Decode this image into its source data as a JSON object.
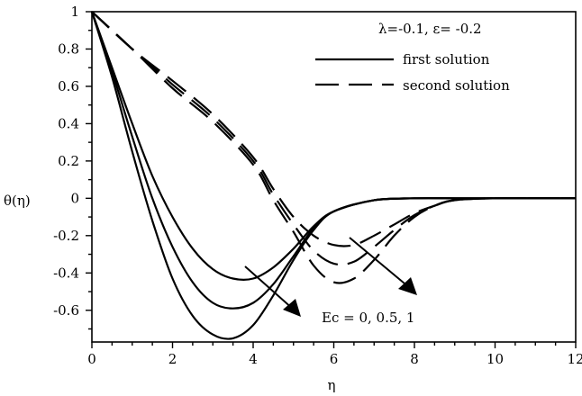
{
  "chart_data": {
    "type": "line",
    "title": "",
    "xlabel": "η",
    "ylabel": "θ(η)",
    "xlim": [
      0,
      12
    ],
    "ylim": [
      -0.77,
      1.0
    ],
    "xticks": [
      "0",
      "2",
      "4",
      "6",
      "8",
      "10",
      "12"
    ],
    "yticks": [
      "1",
      "0.8",
      "0.6",
      "0.4",
      "0.2",
      "0",
      "-0.2",
      "-0.4",
      "-0.6"
    ],
    "parameter_note": "λ=-0.1, ε= -0.2",
    "legend": [
      {
        "label": "first solution",
        "style": "solid"
      },
      {
        "label": "second solution",
        "style": "dashed"
      }
    ],
    "legend_placement": "top-right",
    "annotation": "Ec = 0, 0.5, 1",
    "grid": false,
    "series": [
      {
        "solution": "first",
        "Ec": 0,
        "style": "solid",
        "x": [
          0,
          0.5,
          1,
          1.5,
          2,
          2.5,
          3,
          3.5,
          4,
          4.5,
          5,
          5.5,
          6,
          7,
          8,
          9,
          10,
          12
        ],
        "y": [
          1,
          0.7,
          0.4,
          0.12,
          -0.1,
          -0.27,
          -0.38,
          -0.43,
          -0.43,
          -0.37,
          -0.27,
          -0.15,
          -0.07,
          -0.01,
          0,
          0,
          0,
          0
        ]
      },
      {
        "solution": "first",
        "Ec": 0.5,
        "style": "solid",
        "x": [
          0,
          0.5,
          1,
          1.5,
          2,
          2.5,
          3,
          3.5,
          4,
          4.5,
          5,
          5.5,
          6,
          7,
          8,
          9,
          10,
          12
        ],
        "y": [
          1,
          0.68,
          0.33,
          0.0,
          -0.26,
          -0.45,
          -0.56,
          -0.59,
          -0.56,
          -0.46,
          -0.31,
          -0.16,
          -0.07,
          -0.01,
          0,
          0,
          0,
          0
        ]
      },
      {
        "solution": "first",
        "Ec": 1,
        "style": "solid",
        "x": [
          0,
          0.5,
          1,
          1.5,
          2,
          2.5,
          3,
          3.5,
          4,
          4.5,
          5,
          5.5,
          6,
          7,
          8,
          9,
          10,
          12
        ],
        "y": [
          1,
          0.65,
          0.25,
          -0.12,
          -0.43,
          -0.63,
          -0.73,
          -0.75,
          -0.68,
          -0.52,
          -0.33,
          -0.17,
          -0.07,
          -0.01,
          0,
          0,
          0,
          0
        ]
      },
      {
        "solution": "second",
        "Ec": 0,
        "style": "dashed",
        "x": [
          0,
          1,
          2,
          3,
          4,
          4.5,
          5,
          5.5,
          6,
          6.5,
          7,
          7.5,
          8,
          8.5,
          9,
          10,
          12
        ],
        "y": [
          1,
          0.8,
          0.63,
          0.45,
          0.22,
          0.05,
          -0.1,
          -0.2,
          -0.25,
          -0.25,
          -0.2,
          -0.14,
          -0.08,
          -0.04,
          -0.01,
          0,
          0
        ]
      },
      {
        "solution": "second",
        "Ec": 0.5,
        "style": "dashed",
        "x": [
          0,
          1,
          2,
          3,
          4,
          4.5,
          5,
          5.5,
          6,
          6.5,
          7,
          7.5,
          8,
          8.5,
          9,
          10,
          12
        ],
        "y": [
          1,
          0.8,
          0.61,
          0.43,
          0.2,
          0.02,
          -0.14,
          -0.28,
          -0.35,
          -0.34,
          -0.26,
          -0.17,
          -0.09,
          -0.04,
          -0.01,
          0,
          0
        ]
      },
      {
        "solution": "second",
        "Ec": 1,
        "style": "dashed",
        "x": [
          0,
          1,
          2,
          3,
          4,
          4.5,
          5,
          5.5,
          6,
          6.5,
          7,
          7.5,
          8,
          8.5,
          9,
          10,
          12
        ],
        "y": [
          1,
          0.8,
          0.59,
          0.41,
          0.18,
          -0.01,
          -0.18,
          -0.36,
          -0.45,
          -0.43,
          -0.33,
          -0.2,
          -0.1,
          -0.04,
          -0.01,
          0,
          0
        ]
      }
    ]
  }
}
